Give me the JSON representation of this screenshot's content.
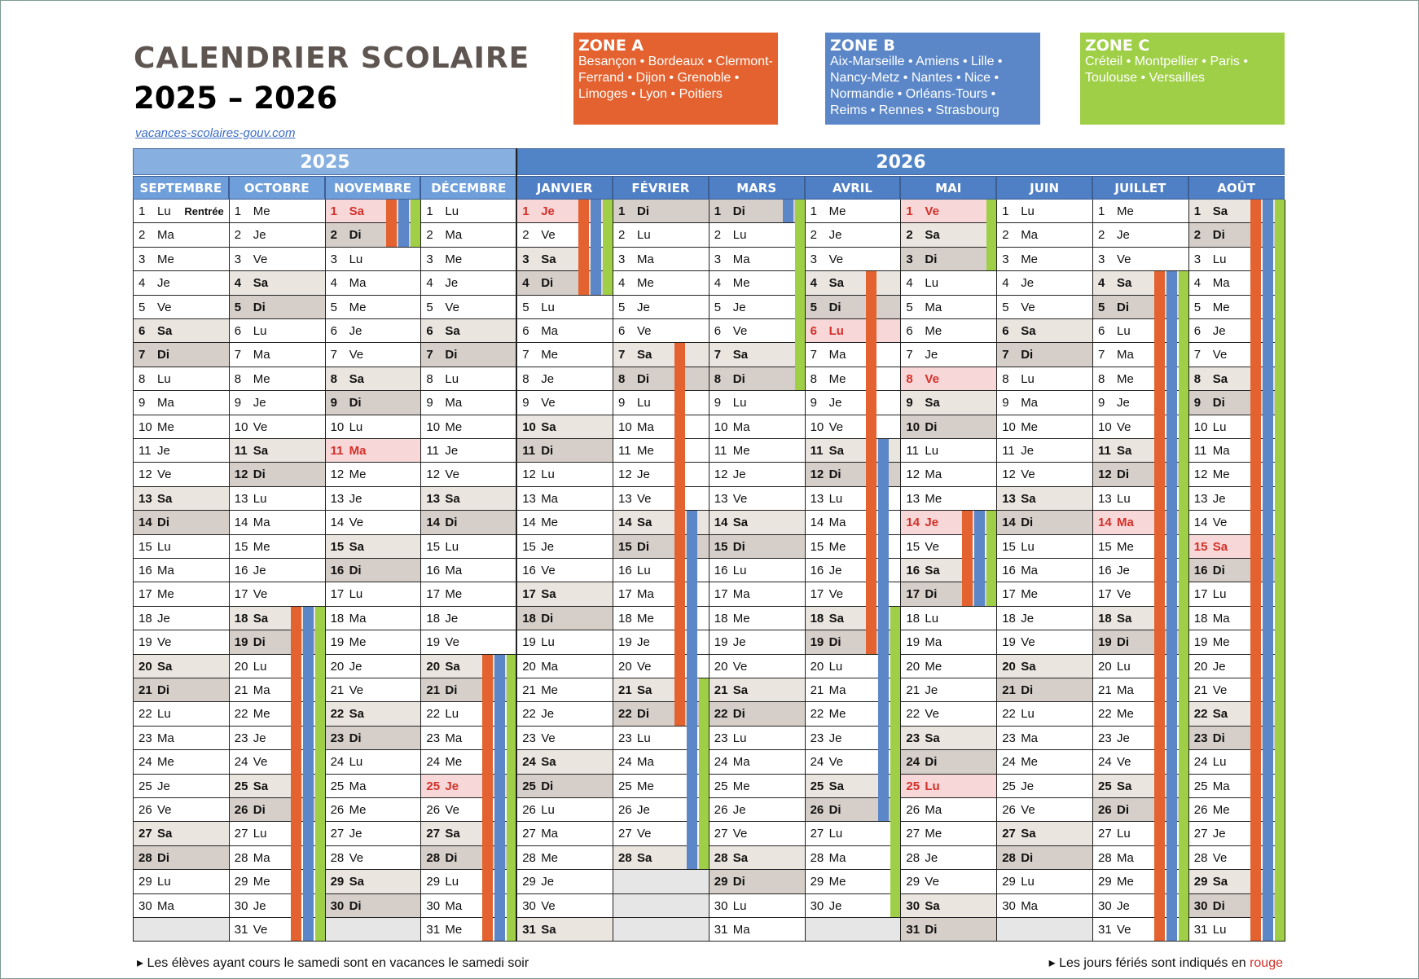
{
  "title_line1": "CALENDRIER SCOLAIRE",
  "title_line2": "2025 – 2026",
  "source_link": "vacances-scolaires-gouv.com",
  "zones": [
    {
      "name": "ZONE A",
      "cities": "Besançon • Bordeaux • Clermont-Ferrand • Dijon • Grenoble • Limoges • Lyon • Poitiers",
      "color": "#e3622f"
    },
    {
      "name": "ZONE B",
      "cities": "Aix-Marseille • Amiens • Lille • Nancy-Metz • Nantes • Nice • Normandie • Orléans-Tours • Reims • Rennes • Strasbourg",
      "color": "#5b87c8"
    },
    {
      "name": "ZONE C",
      "cities": "Créteil • Montpellier • Paris • Toulouse • Versailles",
      "color": "#9ecf46"
    }
  ],
  "years": [
    "2025",
    "2026"
  ],
  "colors": {
    "year2025": "#87b0e0",
    "month2025": "#6f9fda",
    "year2026": "#5184c7",
    "month2026": "#4f7fc5",
    "saturday": "#ebe5e0",
    "sunday": "#d6cfc9",
    "holiday_bg": "#f7d7d7",
    "holiday_text": "#d3302a",
    "empty": "#e6e6e6",
    "zoneA": "#e3622f",
    "zoneB": "#5b87c8",
    "zoneC": "#9ecf46"
  },
  "months": [
    {
      "name": "SEPTEMBRE",
      "days": 30,
      "start": "Lu",
      "ferie": [],
      "note_day": 1,
      "note": "Rentrée"
    },
    {
      "name": "OCTOBRE",
      "days": 31,
      "start": "Me",
      "ferie": []
    },
    {
      "name": "NOVEMBRE",
      "days": 30,
      "start": "Sa",
      "ferie": [
        1,
        11
      ]
    },
    {
      "name": "DÉCEMBRE",
      "days": 31,
      "start": "Lu",
      "ferie": [
        25
      ]
    },
    {
      "name": "JANVIER",
      "days": 31,
      "start": "Je",
      "ferie": [
        1
      ]
    },
    {
      "name": "FÉVRIER",
      "days": 28,
      "start": "Di",
      "ferie": []
    },
    {
      "name": "MARS",
      "days": 31,
      "start": "Di",
      "ferie": []
    },
    {
      "name": "AVRIL",
      "days": 30,
      "start": "Me",
      "ferie": [
        6
      ]
    },
    {
      "name": "MAI",
      "days": 31,
      "start": "Ve",
      "ferie": [
        1,
        8,
        14,
        25
      ]
    },
    {
      "name": "JUIN",
      "days": 30,
      "start": "Lu",
      "ferie": []
    },
    {
      "name": "JUILLET",
      "days": 31,
      "start": "Me",
      "ferie": [
        14
      ]
    },
    {
      "name": "AOÛT",
      "days": 31,
      "start": "Sa",
      "ferie": [
        15
      ]
    }
  ],
  "day_abbr": [
    "Lu",
    "Ma",
    "Me",
    "Je",
    "Ve",
    "Sa",
    "Di"
  ],
  "vacations": [
    {
      "zone": "A",
      "m": 1,
      "from": 18,
      "to": 31
    },
    {
      "zone": "B",
      "m": 1,
      "from": 18,
      "to": 31
    },
    {
      "zone": "C",
      "m": 1,
      "from": 18,
      "to": 31
    },
    {
      "zone": "A",
      "m": 2,
      "from": 1,
      "to": 2
    },
    {
      "zone": "B",
      "m": 2,
      "from": 1,
      "to": 2
    },
    {
      "zone": "C",
      "m": 2,
      "from": 1,
      "to": 2
    },
    {
      "zone": "A",
      "m": 3,
      "from": 20,
      "to": 31
    },
    {
      "zone": "B",
      "m": 3,
      "from": 20,
      "to": 31
    },
    {
      "zone": "C",
      "m": 3,
      "from": 20,
      "to": 31
    },
    {
      "zone": "A",
      "m": 4,
      "from": 1,
      "to": 4
    },
    {
      "zone": "B",
      "m": 4,
      "from": 1,
      "to": 4
    },
    {
      "zone": "C",
      "m": 4,
      "from": 1,
      "to": 4
    },
    {
      "zone": "A",
      "m": 5,
      "from": 7,
      "to": 22
    },
    {
      "zone": "B",
      "m": 5,
      "from": 14,
      "to": 28
    },
    {
      "zone": "C",
      "m": 5,
      "from": 21,
      "to": 28
    },
    {
      "zone": "B",
      "m": 6,
      "from": 1,
      "to": 1
    },
    {
      "zone": "C",
      "m": 6,
      "from": 1,
      "to": 8
    },
    {
      "zone": "A",
      "m": 7,
      "from": 4,
      "to": 19
    },
    {
      "zone": "B",
      "m": 7,
      "from": 11,
      "to": 26
    },
    {
      "zone": "C",
      "m": 7,
      "from": 18,
      "to": 30
    },
    {
      "zone": "C",
      "m": 8,
      "from": 1,
      "to": 3
    },
    {
      "zone": "A",
      "m": 8,
      "from": 14,
      "to": 17
    },
    {
      "zone": "B",
      "m": 8,
      "from": 14,
      "to": 17
    },
    {
      "zone": "C",
      "m": 8,
      "from": 14,
      "to": 17
    },
    {
      "zone": "A",
      "m": 10,
      "from": 4,
      "to": 31
    },
    {
      "zone": "B",
      "m": 10,
      "from": 4,
      "to": 31
    },
    {
      "zone": "C",
      "m": 10,
      "from": 4,
      "to": 31
    },
    {
      "zone": "A",
      "m": 11,
      "from": 1,
      "to": 31
    },
    {
      "zone": "B",
      "m": 11,
      "from": 1,
      "to": 31
    },
    {
      "zone": "C",
      "m": 11,
      "from": 1,
      "to": 31
    }
  ],
  "footer_left": "Les élèves ayant cours le samedi sont en vacances le samedi soir",
  "footer_right_text": "Les jours fériés sont indiqués en",
  "footer_right_red": "rouge"
}
